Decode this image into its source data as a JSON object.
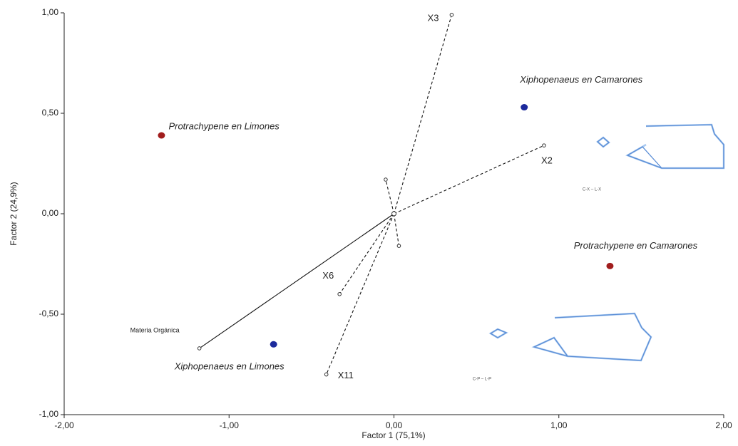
{
  "chart_data": {
    "type": "scatter",
    "xlabel": "Factor 1 (75,1%)",
    "ylabel": "Factor 2 (24,9%)",
    "xlim": [
      -2,
      2
    ],
    "ylim": [
      -1,
      1
    ],
    "xticks": [
      {
        "value": -2,
        "label": "-2,00"
      },
      {
        "value": -1,
        "label": "-1,00"
      },
      {
        "value": 0,
        "label": "0,00"
      },
      {
        "value": 1,
        "label": "1,00"
      },
      {
        "value": 2,
        "label": "2,00"
      }
    ],
    "yticks": [
      {
        "value": -1,
        "label": "-1,00"
      },
      {
        "value": -0.5,
        "label": "-0,50"
      },
      {
        "value": 0,
        "label": "0,00"
      },
      {
        "value": 0.5,
        "label": "0,50"
      },
      {
        "value": 1,
        "label": "1,00"
      }
    ],
    "groups": {
      "labels": [
        "Protrachypene en Limones",
        "Xiphopenaeus en Camarones",
        "Protrachypene en Camarones",
        "Xiphopenaeus en Limones"
      ],
      "x": [
        -1.41,
        0.79,
        1.31,
        -0.73
      ],
      "y": [
        0.39,
        0.53,
        -0.26,
        -0.65
      ],
      "colors": [
        "#a11d1d",
        "#1c2a9c",
        "#a11d1d",
        "#1c2a9c"
      ]
    },
    "vectors": {
      "labels": [
        "X3",
        "X2",
        "X6",
        "X11",
        "Materia Orgánica",
        null,
        null
      ],
      "x": [
        0.35,
        0.91,
        -0.33,
        -0.41,
        -1.18,
        -0.05,
        0.03
      ],
      "y": [
        0.99,
        0.34,
        -0.4,
        -0.8,
        -0.67,
        0.17,
        -0.16
      ],
      "styles": [
        "dashed",
        "dashed",
        "dashed",
        "dashed",
        "solid",
        "dashed",
        "dashed"
      ]
    },
    "annotations": [
      "C-X – L-X",
      "C-P – L-P"
    ]
  }
}
